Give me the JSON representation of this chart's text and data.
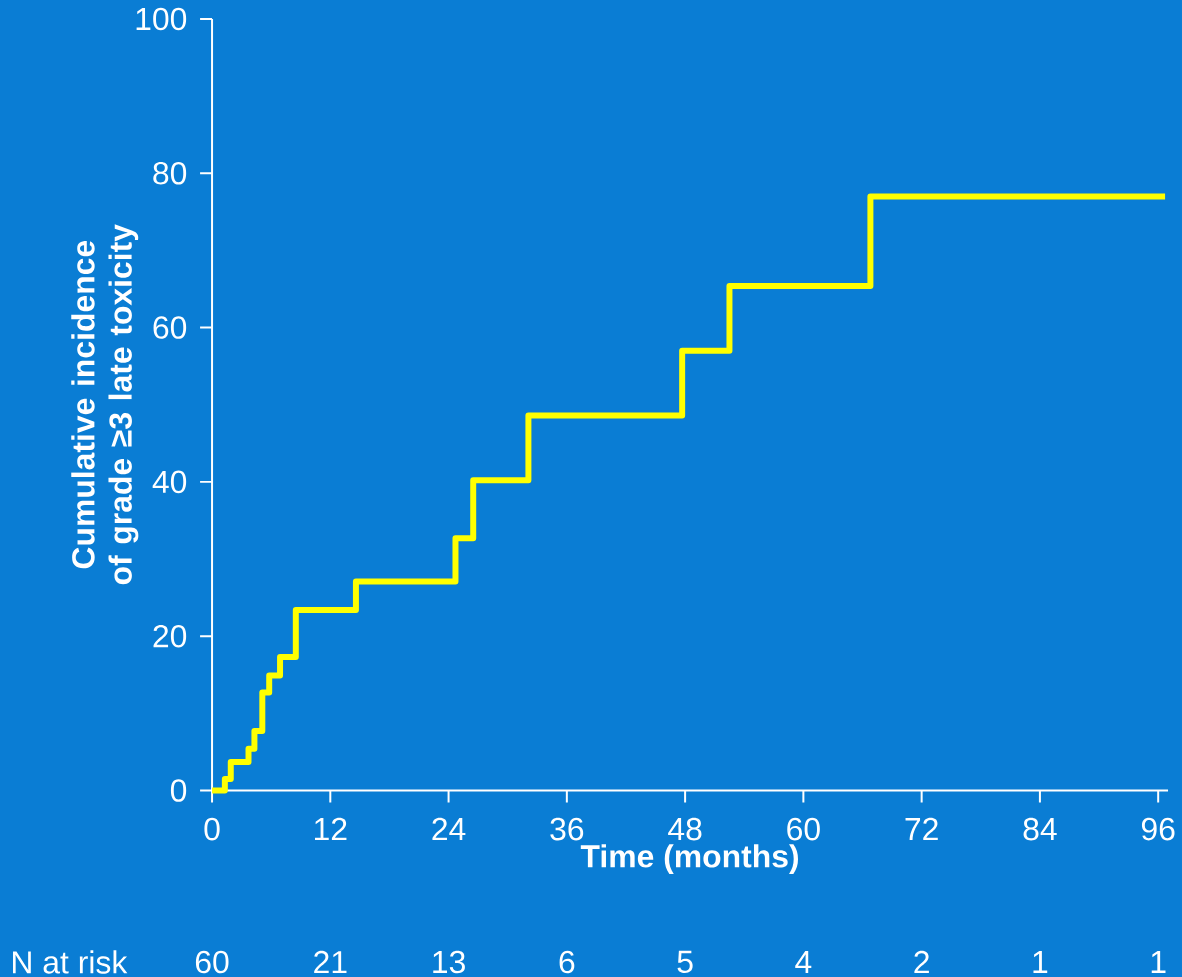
{
  "chart_data": {
    "type": "step",
    "xlabel": "Time (months)",
    "ylabel": "Cumulative incidence of grade ≥3 late toxicity",
    "x": [
      0,
      1.3,
      1.9,
      3.7,
      4.3,
      5.1,
      5.8,
      6.9,
      8.5,
      14.6,
      24.7,
      26.5,
      32.1,
      47.7,
      52.5,
      66.8,
      96.7
    ],
    "values": [
      0,
      1.5,
      3.7,
      5.4,
      7.7,
      12.7,
      14.9,
      17.3,
      23.4,
      27.1,
      32.7,
      40.2,
      48.6,
      57.0,
      65.4,
      77.0,
      77.0
    ],
    "color": "#ffff00",
    "xlim": [
      0,
      97
    ],
    "ylim": [
      0,
      100
    ],
    "xticks": [
      0,
      12,
      24,
      36,
      48,
      60,
      72,
      84,
      96
    ],
    "yticks": [
      0,
      20,
      40,
      60,
      80,
      100
    ],
    "annotations": [
      "N at risk",
      "60",
      "21",
      "13",
      "6",
      "5",
      "4",
      "2",
      "1",
      "1"
    ],
    "grid": false
  }
}
